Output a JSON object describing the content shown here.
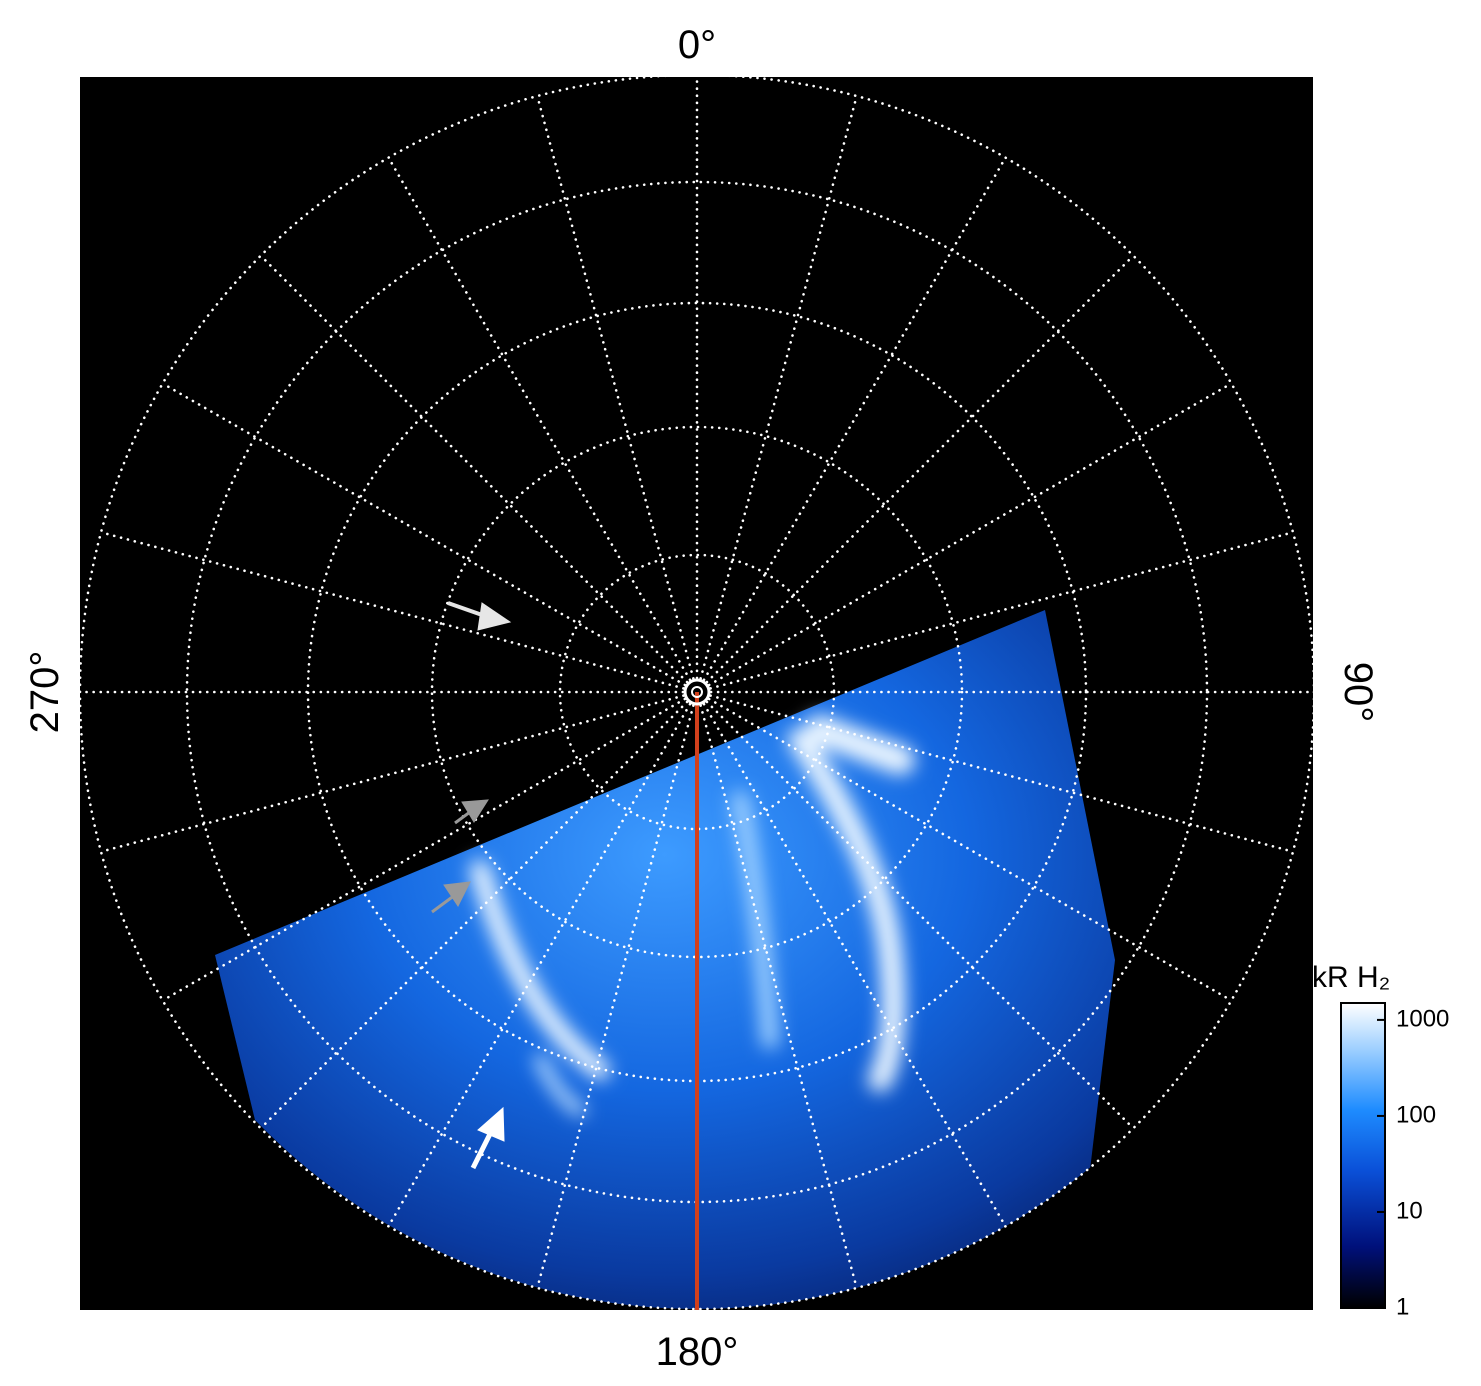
{
  "chart_data": {
    "type": "polar-image",
    "angle_labels": [
      "0°",
      "90°",
      "180°",
      "270°"
    ],
    "colorbar": {
      "label": "kR H₂",
      "scale": "log",
      "lim": [
        1,
        1500
      ],
      "ticks": [
        1,
        10,
        100,
        1000
      ]
    }
  }
}
